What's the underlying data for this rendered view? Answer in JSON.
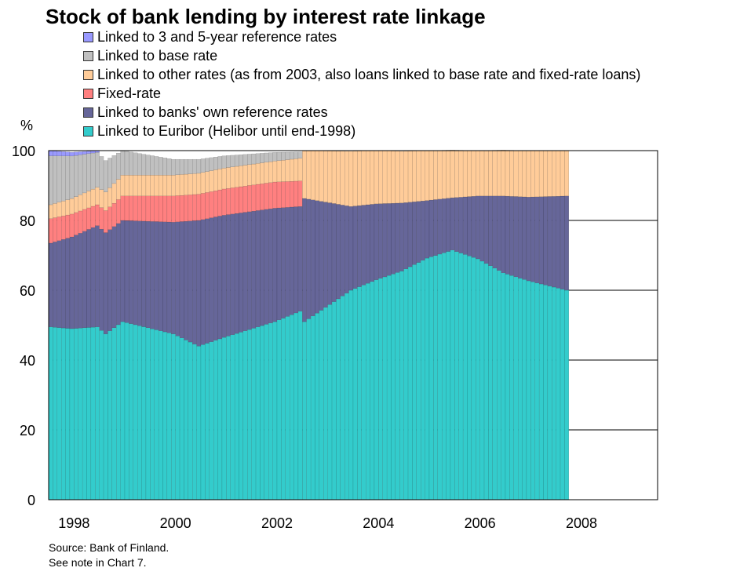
{
  "chart_data": {
    "type": "bar",
    "stacked": true,
    "title": "Stock of bank lending by interest rate linkage",
    "ylabel": "%",
    "ylim": [
      0,
      100
    ],
    "yticks": [
      0,
      20,
      40,
      60,
      80,
      100
    ],
    "xlim": [
      1998,
      2010
    ],
    "xticks": [
      "1998",
      "2000",
      "2002",
      "2004",
      "2006",
      "2008"
    ],
    "x_start": "1998-01",
    "x_end": "2008-03",
    "x_frequency": "monthly",
    "grid": "horizontal",
    "legend_position": "top",
    "series": [
      {
        "name": "Linked to 3 and 5-year reference rates",
        "color": "#9999FF",
        "points": [
          [
            "1998-01",
            1.5
          ],
          [
            "1998-12",
            0.5
          ],
          [
            "1999-01",
            0
          ],
          [
            "2008-03",
            0
          ]
        ]
      },
      {
        "name": "Linked to base rate",
        "color": "#C0C0C0",
        "points": [
          [
            "1998-01",
            14
          ],
          [
            "1998-12",
            10
          ],
          [
            "1999-06",
            7
          ],
          [
            "2000-06",
            4.5
          ],
          [
            "2001-06",
            3.5
          ],
          [
            "2002-06",
            2.5
          ],
          [
            "2002-12",
            1.8
          ],
          [
            "2003-01",
            0
          ],
          [
            "2008-03",
            0
          ]
        ]
      },
      {
        "name": "Linked to other rates (as from 2003, also loans linked to base rate and fixed-rate loans)",
        "color": "#FFCC99",
        "points": [
          [
            "1998-01",
            4
          ],
          [
            "1998-12",
            5
          ],
          [
            "1999-06",
            6
          ],
          [
            "2000-06",
            6
          ],
          [
            "2001-06",
            6
          ],
          [
            "2002-06",
            6
          ],
          [
            "2002-12",
            6.5
          ],
          [
            "2003-01",
            13.7
          ],
          [
            "2003-12",
            15.8
          ],
          [
            "2005-06",
            14.3
          ],
          [
            "2006-06",
            13
          ],
          [
            "2007-06",
            13.3
          ],
          [
            "2008-03",
            13
          ]
        ]
      },
      {
        "name": "Fixed-rate",
        "color": "#FF8080",
        "points": [
          [
            "1998-01",
            7
          ],
          [
            "1998-12",
            6
          ],
          [
            "1999-06",
            7
          ],
          [
            "2000-06",
            7.5
          ],
          [
            "2001-06",
            7.5
          ],
          [
            "2002-06",
            7.5
          ],
          [
            "2002-12",
            7.3
          ],
          [
            "2003-01",
            0
          ],
          [
            "2008-03",
            0
          ]
        ]
      },
      {
        "name": "Linked to banks' own reference rates",
        "color": "#666699",
        "points": [
          [
            "1998-01",
            24
          ],
          [
            "1998-12",
            29
          ],
          [
            "1999-06",
            29
          ],
          [
            "2000-06",
            32
          ],
          [
            "2000-12",
            36
          ],
          [
            "2001-06",
            35
          ],
          [
            "2002-06",
            32.5
          ],
          [
            "2002-12",
            30
          ],
          [
            "2003-01",
            35.3
          ],
          [
            "2003-12",
            24
          ],
          [
            "2004-12",
            19.5
          ],
          [
            "2005-06",
            16.5
          ],
          [
            "2005-12",
            15
          ],
          [
            "2006-06",
            18
          ],
          [
            "2006-12",
            22
          ],
          [
            "2007-06",
            24
          ],
          [
            "2008-03",
            27
          ]
        ]
      },
      {
        "name": "Linked to Euribor (Helibor until end-1998)",
        "color": "#33CCCC",
        "points": [
          [
            "1998-01",
            49.5
          ],
          [
            "1998-06",
            49
          ],
          [
            "1998-12",
            49.5
          ],
          [
            "1999-02",
            47.5
          ],
          [
            "1999-06",
            51
          ],
          [
            "2000-06",
            47.5
          ],
          [
            "2000-12",
            44
          ],
          [
            "2001-06",
            46.5
          ],
          [
            "2002-06",
            51
          ],
          [
            "2002-12",
            54
          ],
          [
            "2003-01",
            51
          ],
          [
            "2003-12",
            60
          ],
          [
            "2004-06",
            63
          ],
          [
            "2004-12",
            65.5
          ],
          [
            "2005-06",
            69.2
          ],
          [
            "2005-12",
            71.5
          ],
          [
            "2006-06",
            69
          ],
          [
            "2006-12",
            65
          ],
          [
            "2007-06",
            62.7
          ],
          [
            "2008-03",
            60
          ]
        ]
      }
    ]
  },
  "legend_order": [
    0,
    1,
    2,
    3,
    4,
    5
  ],
  "notes": {
    "source": "Source: Bank of Finland.",
    "see_note": "See note in Chart 7."
  }
}
